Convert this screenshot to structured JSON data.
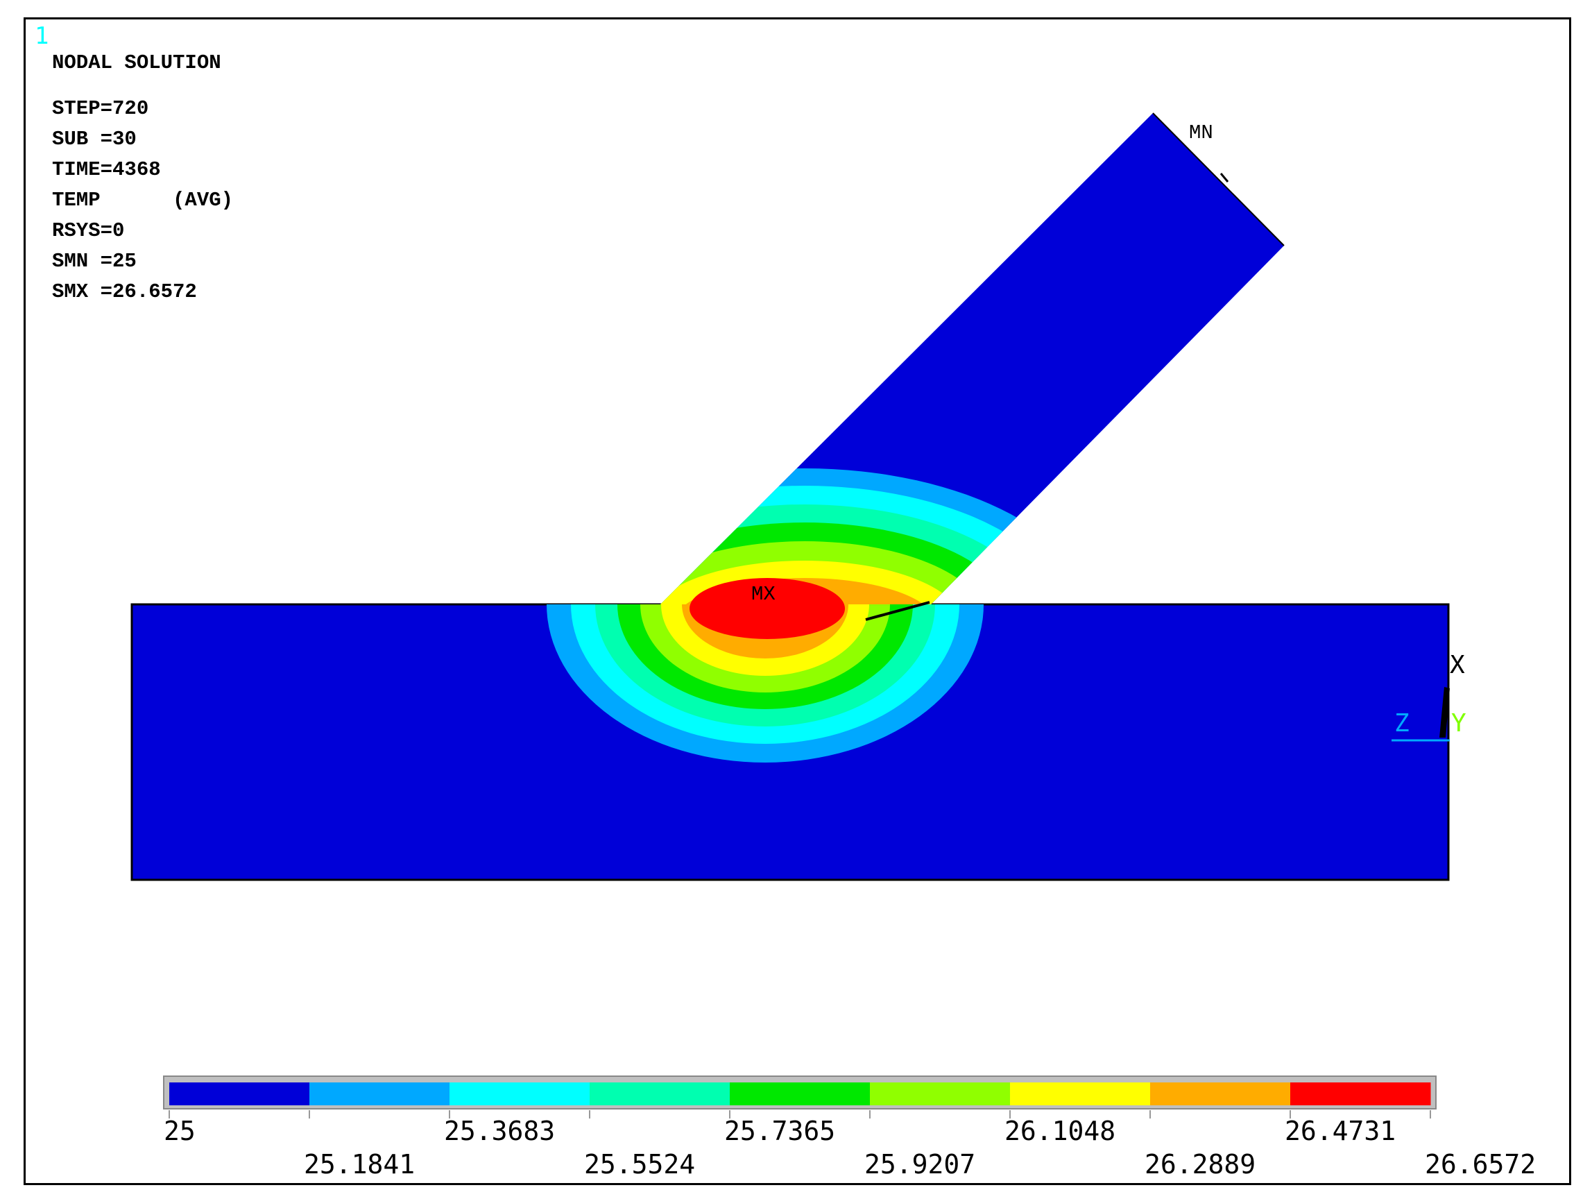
{
  "window_number": "1",
  "info": {
    "title": "NODAL SOLUTION",
    "lines": [
      "STEP=720",
      "SUB =30",
      "TIME=4368",
      "TEMP      (AVG)",
      "RSYS=0",
      "SMN =25",
      "SMX =26.6572"
    ]
  },
  "markers": {
    "min": "MN",
    "max": "MX"
  },
  "triad": {
    "x": "X",
    "y": "Y",
    "z": "Z"
  },
  "legend": {
    "colors": [
      "#0000d8",
      "#00a8ff",
      "#00ffff",
      "#00ffb0",
      "#00e800",
      "#90ff00",
      "#ffff00",
      "#ffac00",
      "#ff0000"
    ],
    "labels_top": [
      "25",
      "25.3683",
      "25.7365",
      "26.1048",
      "26.4731"
    ],
    "labels_bottom": [
      "25.1841",
      "25.5524",
      "25.9207",
      "26.2889",
      "26.6572"
    ]
  },
  "colors": {
    "triad_z": "#00aaff",
    "triad_y": "#80ff00",
    "window_number": "#00ffff"
  }
}
